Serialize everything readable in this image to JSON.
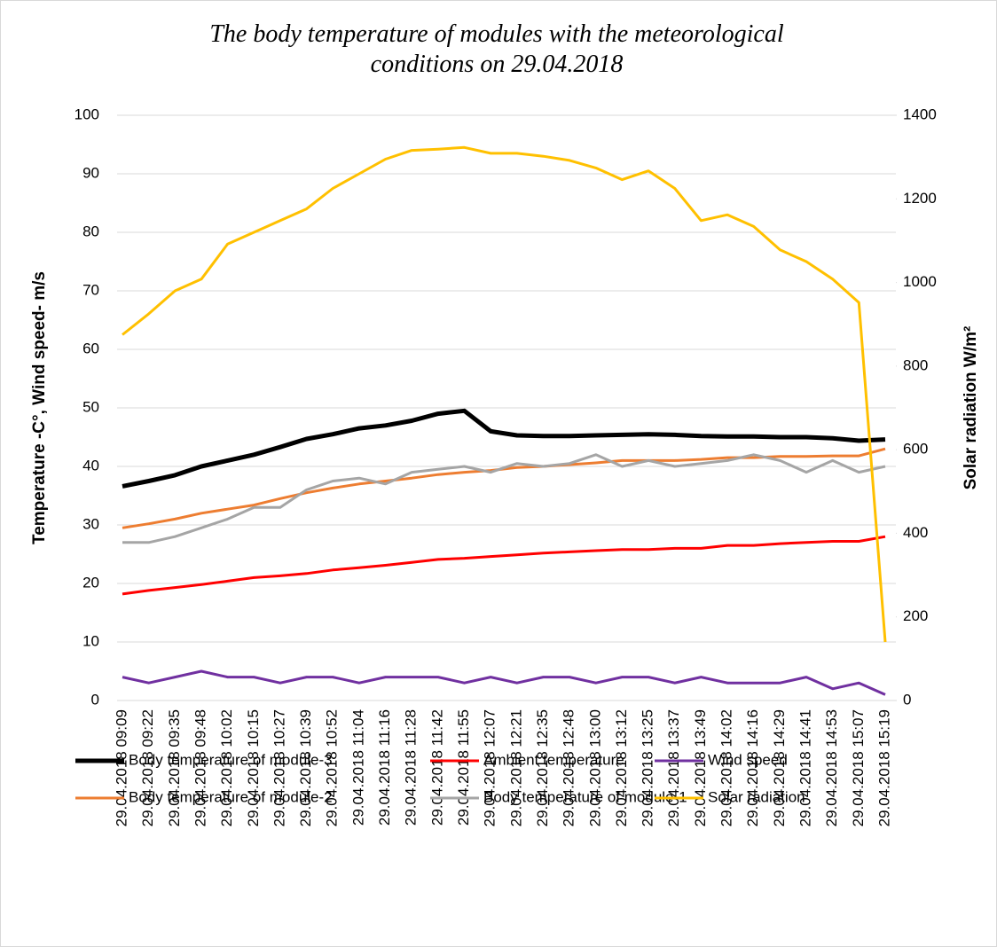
{
  "chart_data": {
    "type": "line",
    "title": "The body temperature of modules with the meteorological conditions on 29.04.2018",
    "ylabel": "Temperature -C°, Wind speed- m/s",
    "y2label": "Solar radiation W/m²",
    "categories": [
      "29.04.2018 09:09",
      "29.04.2018 09:22",
      "29.04.2018 09:35",
      "29.04.2018 09:48",
      "29.04.2018 10:02",
      "29.04.2018 10:15",
      "29.04.2018 10:27",
      "29.04.2018 10:39",
      "29.04.2018 10:52",
      "29.04.2018 11:04",
      "29.04.2018 11:16",
      "29.04.2018 11:28",
      "29.04.2018 11:42",
      "29.04.2018 11:55",
      "29.04.2018 12:07",
      "29.04.2018 12:21",
      "29.04.2018 12:35",
      "29.04.2018 12:48",
      "29.04.2018 13:00",
      "29.04.2018 13:12",
      "29.04.2018 13:25",
      "29.04.2018 13:37",
      "29.04.2018 13:49",
      "29.04.2018 14:02",
      "29.04.2018 14:16",
      "29.04.2018 14:29",
      "29.04.2018 14:41",
      "29.04.2018 14:53",
      "29.04.2018 15:07",
      "29.04.2018 15:19"
    ],
    "series": [
      {
        "name": "Body temperature of module-3",
        "color": "#000000",
        "width": 5,
        "values": [
          36.6,
          37.5,
          38.5,
          40,
          41,
          42,
          43.3,
          44.7,
          45.5,
          46.5,
          47,
          47.8,
          49,
          49.5,
          46,
          45.3,
          45.2,
          45.2,
          45.3,
          45.4,
          45.5,
          45.4,
          45.2,
          45.1,
          45.1,
          45,
          45,
          44.8,
          44.4,
          44.6
        ]
      },
      {
        "name": "Ambient temperature",
        "color": "#ff0000",
        "width": 3,
        "values": [
          18.2,
          18.8,
          19.3,
          19.8,
          20.4,
          21,
          21.3,
          21.7,
          22.3,
          22.7,
          23.1,
          23.6,
          24.1,
          24.3,
          24.6,
          24.9,
          25.2,
          25.4,
          25.6,
          25.8,
          25.8,
          26,
          26,
          26.5,
          26.5,
          26.8,
          27,
          27.2,
          27.2,
          28
        ]
      },
      {
        "name": "Wind speed",
        "color": "#7030a0",
        "width": 3,
        "values": [
          4,
          3,
          4,
          5,
          4,
          4,
          3,
          4,
          4,
          3,
          4,
          4,
          4,
          3,
          4,
          3,
          4,
          4,
          3,
          4,
          4,
          3,
          4,
          3,
          3,
          3,
          4,
          2,
          3,
          1
        ]
      },
      {
        "name": "Body temperature of module-2",
        "color": "#ed7d31",
        "width": 3,
        "values": [
          29.5,
          30.2,
          31,
          32,
          32.7,
          33.4,
          34.5,
          35.5,
          36.3,
          37,
          37.5,
          38,
          38.6,
          39,
          39.3,
          39.8,
          40,
          40.3,
          40.6,
          41,
          41,
          41,
          41.2,
          41.5,
          41.5,
          41.7,
          41.7,
          41.8,
          41.8,
          43
        ]
      },
      {
        "name": "Body temperature of module-1",
        "color": "#a5a5a5",
        "width": 3,
        "values": [
          27,
          27,
          28,
          29.5,
          31,
          33,
          33,
          36,
          37.5,
          38,
          37,
          39,
          39.5,
          40,
          39,
          40.5,
          40,
          40.5,
          42,
          40,
          41,
          40,
          40.5,
          41,
          42,
          41,
          39,
          41,
          39,
          40
        ]
      },
      {
        "name": "Solar radiation",
        "color": "#ffc000",
        "width": 3,
        "axis": "y2",
        "values": [
          875,
          925,
          980,
          1008,
          1092,
          1120,
          1148,
          1176,
          1225,
          1260,
          1295,
          1316,
          1319,
          1323,
          1309,
          1309,
          1302,
          1292,
          1274,
          1246,
          1267,
          1225,
          1148,
          1162,
          1134,
          1078,
          1050,
          1008,
          952,
          140
        ]
      }
    ],
    "ylim": [
      0,
      100
    ],
    "yticks": [
      0,
      10,
      20,
      30,
      40,
      50,
      60,
      70,
      80,
      90,
      100
    ],
    "y2lim": [
      0,
      1400
    ],
    "y2ticks": [
      0,
      200,
      400,
      600,
      800,
      1000,
      1200,
      1400
    ],
    "grid": true,
    "legend": "bottom"
  }
}
